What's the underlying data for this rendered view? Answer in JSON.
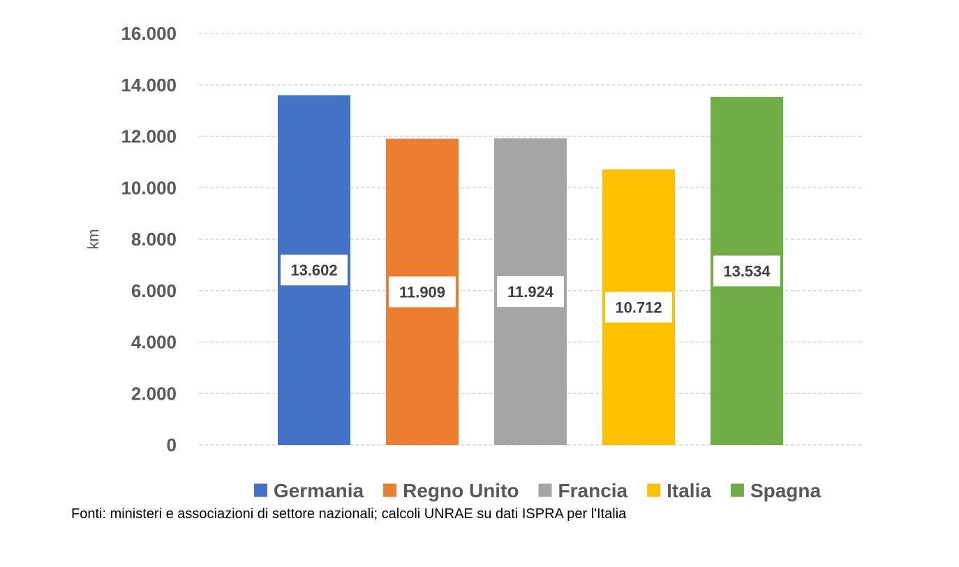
{
  "chart_data": {
    "type": "bar",
    "categories": [
      "Germania",
      "Regno Unito",
      "Francia",
      "Italia",
      "Spagna"
    ],
    "values": [
      13602,
      11909,
      11924,
      10712,
      13534
    ],
    "value_labels": [
      "13.602",
      "11.909",
      "11.924",
      "10.712",
      "13.534"
    ],
    "colors": [
      "#4472C4",
      "#ED7D31",
      "#A5A5A5",
      "#FFC000",
      "#70AD47"
    ],
    "ylabel": "km",
    "ylim": [
      0,
      16000
    ],
    "yticks": [
      0,
      2000,
      4000,
      6000,
      8000,
      10000,
      12000,
      14000,
      16000
    ],
    "ytick_labels": [
      "0",
      "2.000",
      "4.000",
      "6.000",
      "8.000",
      "10.000",
      "12.000",
      "14.000",
      "16.000"
    ],
    "grid": true,
    "legend_position": "bottom"
  },
  "source_note": "Fonti: ministeri e associazioni di settore nazionali; calcoli UNRAE su dati ISPRA per l'Italia"
}
